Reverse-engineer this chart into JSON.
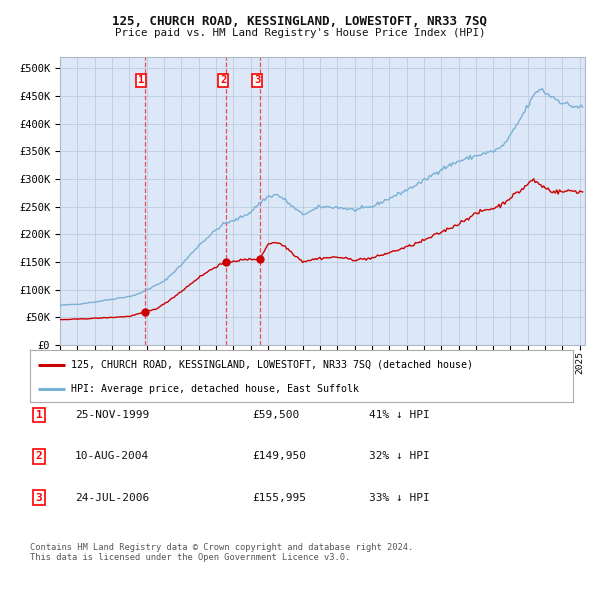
{
  "title": "125, CHURCH ROAD, KESSINGLAND, LOWESTOFT, NR33 7SQ",
  "subtitle": "Price paid vs. HM Land Registry's House Price Index (HPI)",
  "legend_red": "125, CHURCH ROAD, KESSINGLAND, LOWESTOFT, NR33 7SQ (detached house)",
  "legend_blue": "HPI: Average price, detached house, East Suffolk",
  "footer1": "Contains HM Land Registry data © Crown copyright and database right 2024.",
  "footer2": "This data is licensed under the Open Government Licence v3.0.",
  "transactions": [
    {
      "num": "1",
      "date": "25-NOV-1999",
      "price": "£59,500",
      "pct": "41% ↓ HPI"
    },
    {
      "num": "2",
      "date": "10-AUG-2004",
      "price": "£149,950",
      "pct": "32% ↓ HPI"
    },
    {
      "num": "3",
      "date": "24-JUL-2006",
      "price": "£155,995",
      "pct": "33% ↓ HPI"
    }
  ],
  "fig_bg": "#ffffff",
  "plot_bg": "#dce8f8",
  "red_color": "#cc0000",
  "blue_color": "#7ab0d4",
  "dashed_color": "#ee3333",
  "ylim_max": 520000,
  "yticks": [
    0,
    50000,
    100000,
    150000,
    200000,
    250000,
    300000,
    350000,
    400000,
    450000,
    500000
  ],
  "ytick_labels": [
    "£0",
    "£50K",
    "£100K",
    "£150K",
    "£200K",
    "£250K",
    "£300K",
    "£350K",
    "£400K",
    "£450K",
    "£500K"
  ],
  "sale_dates_num": [
    1999.878,
    2004.603,
    2006.548
  ],
  "sale_prices": [
    59500,
    149950,
    155995
  ],
  "xmin": 1995.0,
  "xmax": 2025.3
}
